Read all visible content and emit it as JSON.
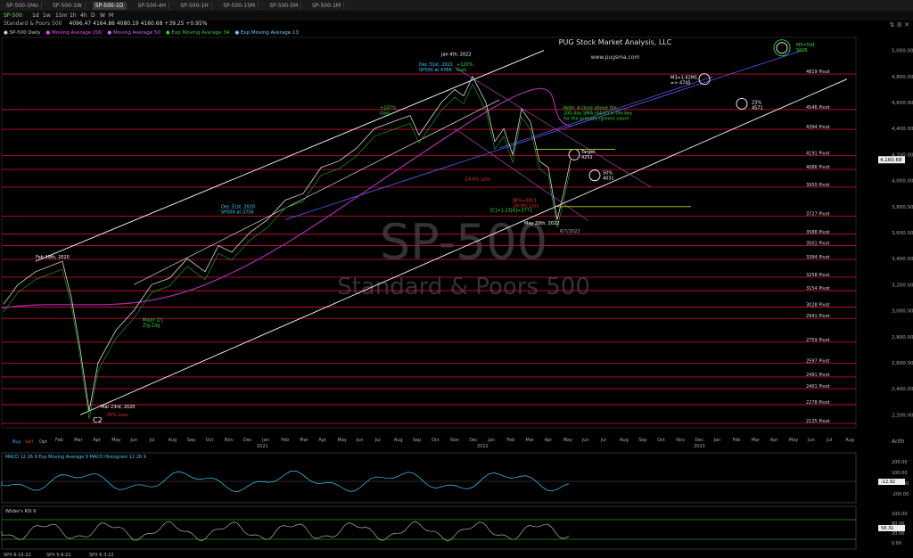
{
  "tabs": [
    "SP-500-1Mo",
    "SP-500-1W",
    "SP-500-1D",
    "SP-500-4H",
    "SP-500-1H",
    "SP-500-15M",
    "SP-500-5M",
    "SP-500-1M"
  ],
  "active_tab": 2,
  "toolbar": {
    "items": [
      "1d",
      "1w",
      "15m",
      "1h",
      "4h",
      "D",
      "W",
      "M"
    ],
    "symbol": "SP-500"
  },
  "quote": {
    "name": "Standard & Poors 500",
    "values": "4096.47  4164.86  4080.19  4160.68  +39.25  +0.95%",
    "change": "+39.25  +0.95%"
  },
  "legend": [
    {
      "label": "SP-500 Daily",
      "color": "#cccccc"
    },
    {
      "label": "Moving Average 200",
      "color": "#ff44ff"
    },
    {
      "label": "Moving Average 50",
      "color": "#cc66ff"
    },
    {
      "label": "Exp Moving Average 34",
      "color": "#33cc33"
    },
    {
      "label": "Exp Moving Average 13",
      "color": "#66ccff"
    }
  ],
  "header": {
    "title": "PUG Stock Market Analysis, LLC",
    "url": "www.pugsma.com"
  },
  "watermark": {
    "big": "SP-500",
    "sub": "Standard & Poors 500"
  },
  "price_box": "4,160.68",
  "right_price_top": "39.25  0.95",
  "price_axis": [
    "5,000.00",
    "4,800.00",
    "4,600.00",
    "4,400.00",
    "4,200.00",
    "4,000.00",
    "3,800.00",
    "3,600.00",
    "3,400.00",
    "3,200.00",
    "3,000.00",
    "2,800.00",
    "2,600.00",
    "2,400.00",
    "2,200.00"
  ],
  "pivots": [
    {
      "label": "4819 Pivot",
      "price": 4819
    },
    {
      "label": "4546 Pivot",
      "price": 4546
    },
    {
      "label": "4394 Pivot",
      "price": 4394
    },
    {
      "label": "4191 Pivot",
      "price": 4191
    },
    {
      "label": "4086 Pivot",
      "price": 4086
    },
    {
      "label": "3950 Pivot",
      "price": 3950
    },
    {
      "label": "3727 Pivot",
      "price": 3727
    },
    {
      "label": "3588 Pivot",
      "price": 3588
    },
    {
      "label": "3501 Pivot",
      "price": 3501
    },
    {
      "label": "3394 Pivot",
      "price": 3394
    },
    {
      "label": "3258 Pivot",
      "price": 3258
    },
    {
      "label": "3154 Pivot",
      "price": 3154
    },
    {
      "label": "3028 Pivot",
      "price": 3028
    },
    {
      "label": "2941 Pivot",
      "price": 2941
    },
    {
      "label": "2759 Pivot",
      "price": 2759
    },
    {
      "label": "2597 Pivot",
      "price": 2597
    },
    {
      "label": "2491 Pivot",
      "price": 2491
    },
    {
      "label": "2401 Pivot",
      "price": 2401
    },
    {
      "label": "2278 Pivot",
      "price": 2278
    },
    {
      "label": "2135 Pivot",
      "price": 2135
    }
  ],
  "months": [
    "Feb",
    "Mar",
    "Apr",
    "May",
    "Jun",
    "Jul",
    "Aug",
    "Sep",
    "Oct",
    "Nov",
    "Dec",
    "Jan",
    "Feb",
    "Mar",
    "Apr",
    "May",
    "Jun",
    "Jul",
    "Aug",
    "Sep",
    "Oct",
    "Nov",
    "Dec",
    "Jan",
    "Feb",
    "Mar",
    "Apr",
    "May",
    "Jun",
    "Jul",
    "Aug",
    "Sep",
    "Oct",
    "Nov",
    "Dec",
    "Jan",
    "Feb",
    "Mar",
    "Apr",
    "May",
    "Jun",
    "Jul",
    "Aug",
    "Sep",
    "Oct"
  ],
  "years": [
    "2021",
    "2022",
    "2023"
  ],
  "annotations": {
    "feb19": "Feb 19th, 2020",
    "mar23": "Mar 23rd, 2020",
    "loss35": "-35% Loss",
    "dec31_2020": "Dec 31st, 2020\nSP500 at 3756",
    "jan4": "Jan 4th, 2022",
    "dec31_2021": "Dec 31st, 2021\nSP500 at 4766",
    "gain120": "+120%\nGain",
    "gain107": "+107%\nGain",
    "note": "Note: A close above the\n200-day SMA (4447) is the key\nfor the primary (green) count",
    "target": "Target\n4251",
    "m3": "M3=1.62M1\n=> 4745",
    "may20": "May 20th, 2022",
    "loss14": "-14.6% Loss",
    "retr": "38%=3821\n-20.9% Loss",
    "c_eq": "[C]=1.23[A]=3771",
    "pct23": "23%\n4571",
    "pct50": "50%\n4031",
    "m5": "M5=591\n5006",
    "major2": "Major [2]\nZig-Zag",
    "c2": "C2",
    "date_tag": "6/7/2022"
  },
  "macd": {
    "title": "MACD 12 26 9",
    "ema": "Exp Moving Average 9",
    "hist": "MACD Histogram 12 26 9",
    "value": "-12.92",
    "axis": [
      "200.00",
      "100.00",
      "-100.00",
      "-200.00"
    ]
  },
  "rsi": {
    "title": "Wilder's RSI 9",
    "value": "58.31",
    "axis": [
      "100.00",
      "80.00",
      "20.00",
      "0.00"
    ]
  },
  "buysell": {
    "buy": "Buy",
    "sell": "Sell",
    "opt": "Opt"
  },
  "bottom_tabs": [
    "SPX 6-15-22",
    "SPX 5-6-22",
    "SPX 6-3-22"
  ],
  "arith": "Arith",
  "colors": {
    "pivot": "#c0102c",
    "trend": "#ffffff",
    "channel": "#6060ff",
    "ma200": "#9a2e9a",
    "ema": "#22aa22",
    "accent_green": "#33dd33"
  }
}
